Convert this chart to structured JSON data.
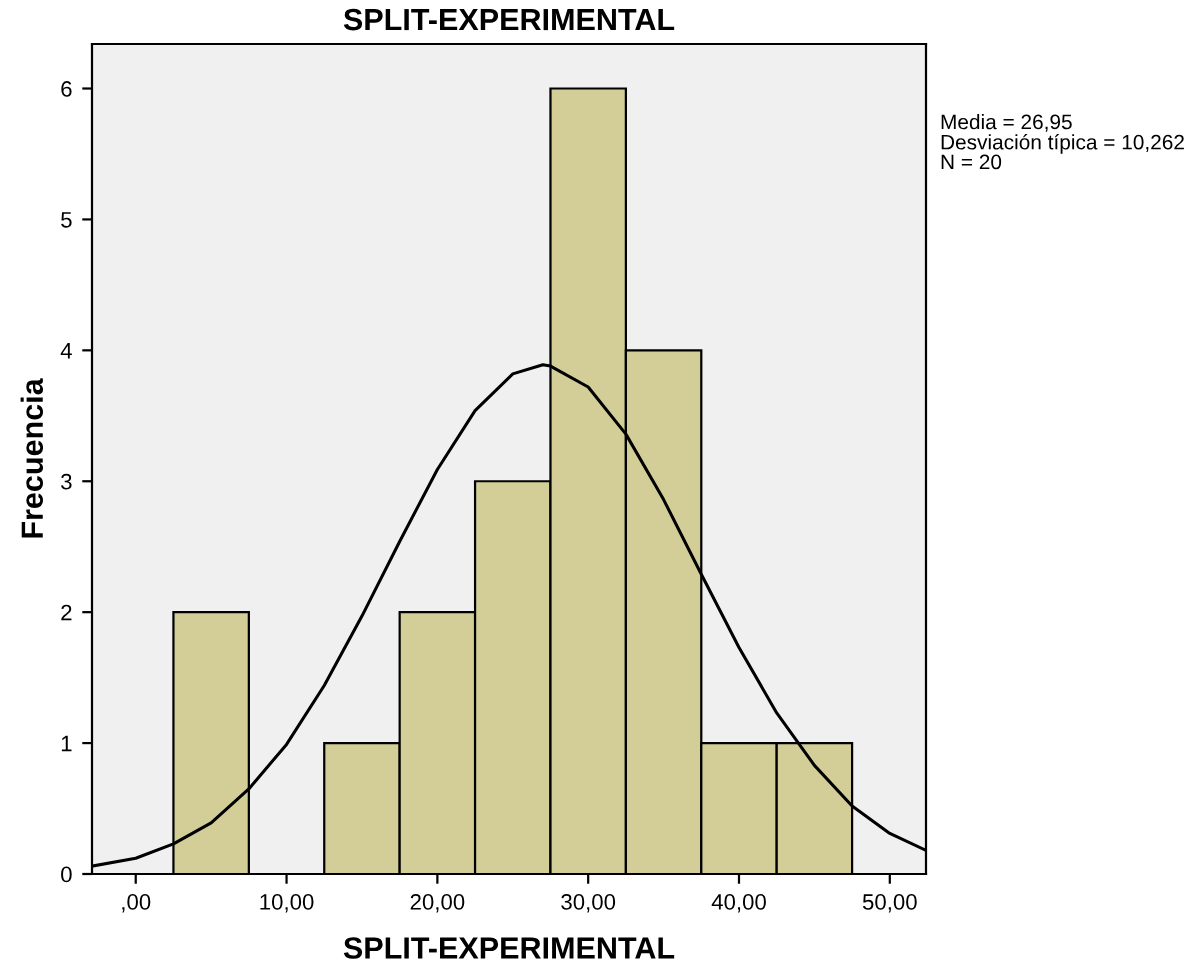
{
  "chart_data": {
    "type": "histogram",
    "title": "SPLIT-EXPERIMENTAL",
    "xlabel": "SPLIT-EXPERIMENTAL",
    "ylabel": "Frecuencia",
    "bins": [
      2.5,
      7.5,
      12.5,
      17.5,
      22.5,
      27.5,
      32.5,
      37.5,
      42.5,
      47.5
    ],
    "values": [
      2,
      0,
      1,
      2,
      3,
      6,
      4,
      1,
      1
    ],
    "color": "#d3ce97",
    "series": [
      {
        "type": "line",
        "color": "#000000",
        "x": [
          -2.9,
          0,
          2.5,
          5,
          7.5,
          10,
          12.5,
          15,
          17.5,
          20,
          22.5,
          25,
          27,
          27.5,
          30,
          32.5,
          35,
          37.5,
          40,
          42.5,
          45,
          47.5,
          50,
          52.4
        ],
        "values": [
          0.06,
          0.12,
          0.23,
          0.39,
          0.65,
          0.99,
          1.44,
          1.97,
          2.54,
          3.09,
          3.54,
          3.82,
          3.89,
          3.88,
          3.72,
          3.36,
          2.86,
          2.29,
          1.73,
          1.23,
          0.83,
          0.52,
          0.31,
          0.18
        ]
      }
    ],
    "xlim": [
      -2.9,
      52.4
    ],
    "xticks": [
      {
        "value": 0,
        "label": ",00"
      },
      {
        "value": 10,
        "label": "10,00"
      },
      {
        "value": 20,
        "label": "20,00"
      },
      {
        "value": 30,
        "label": "30,00"
      },
      {
        "value": 40,
        "label": "40,00"
      },
      {
        "value": 50,
        "label": "50,00"
      }
    ],
    "ylim": [
      0,
      6.34
    ],
    "yticks": [
      0,
      1,
      2,
      3,
      4,
      5,
      6
    ],
    "grid": false,
    "legend": false,
    "annotations": [
      "Media = 26,95",
      "Desviación típica = 10,262",
      "N = 20"
    ]
  }
}
